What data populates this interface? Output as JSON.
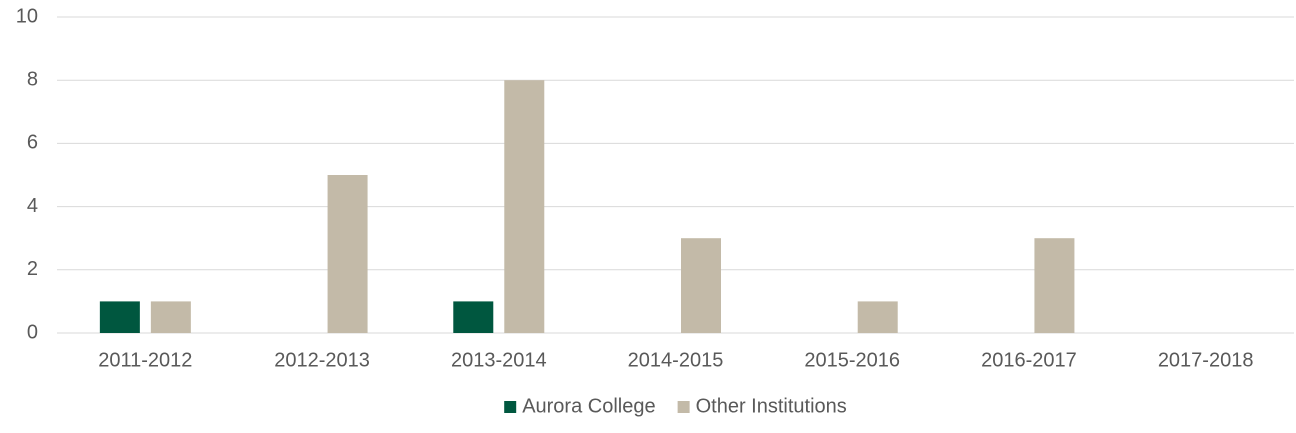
{
  "chart_data": {
    "type": "bar",
    "categories": [
      "2011-2012",
      "2012-2013",
      "2013-2014",
      "2014-2015",
      "2015-2016",
      "2016-2017",
      "2017-2018"
    ],
    "series": [
      {
        "name": "Aurora College",
        "color": "#00573f",
        "values": [
          1,
          0,
          1,
          0,
          0,
          0,
          0
        ]
      },
      {
        "name": "Other Institutions",
        "color": "#c3baa8",
        "values": [
          1,
          5,
          8,
          3,
          1,
          3,
          0
        ]
      }
    ],
    "ylim": [
      0,
      10
    ],
    "yticks": [
      0,
      2,
      4,
      6,
      8,
      10
    ],
    "grid": true,
    "legend": "bottom"
  }
}
